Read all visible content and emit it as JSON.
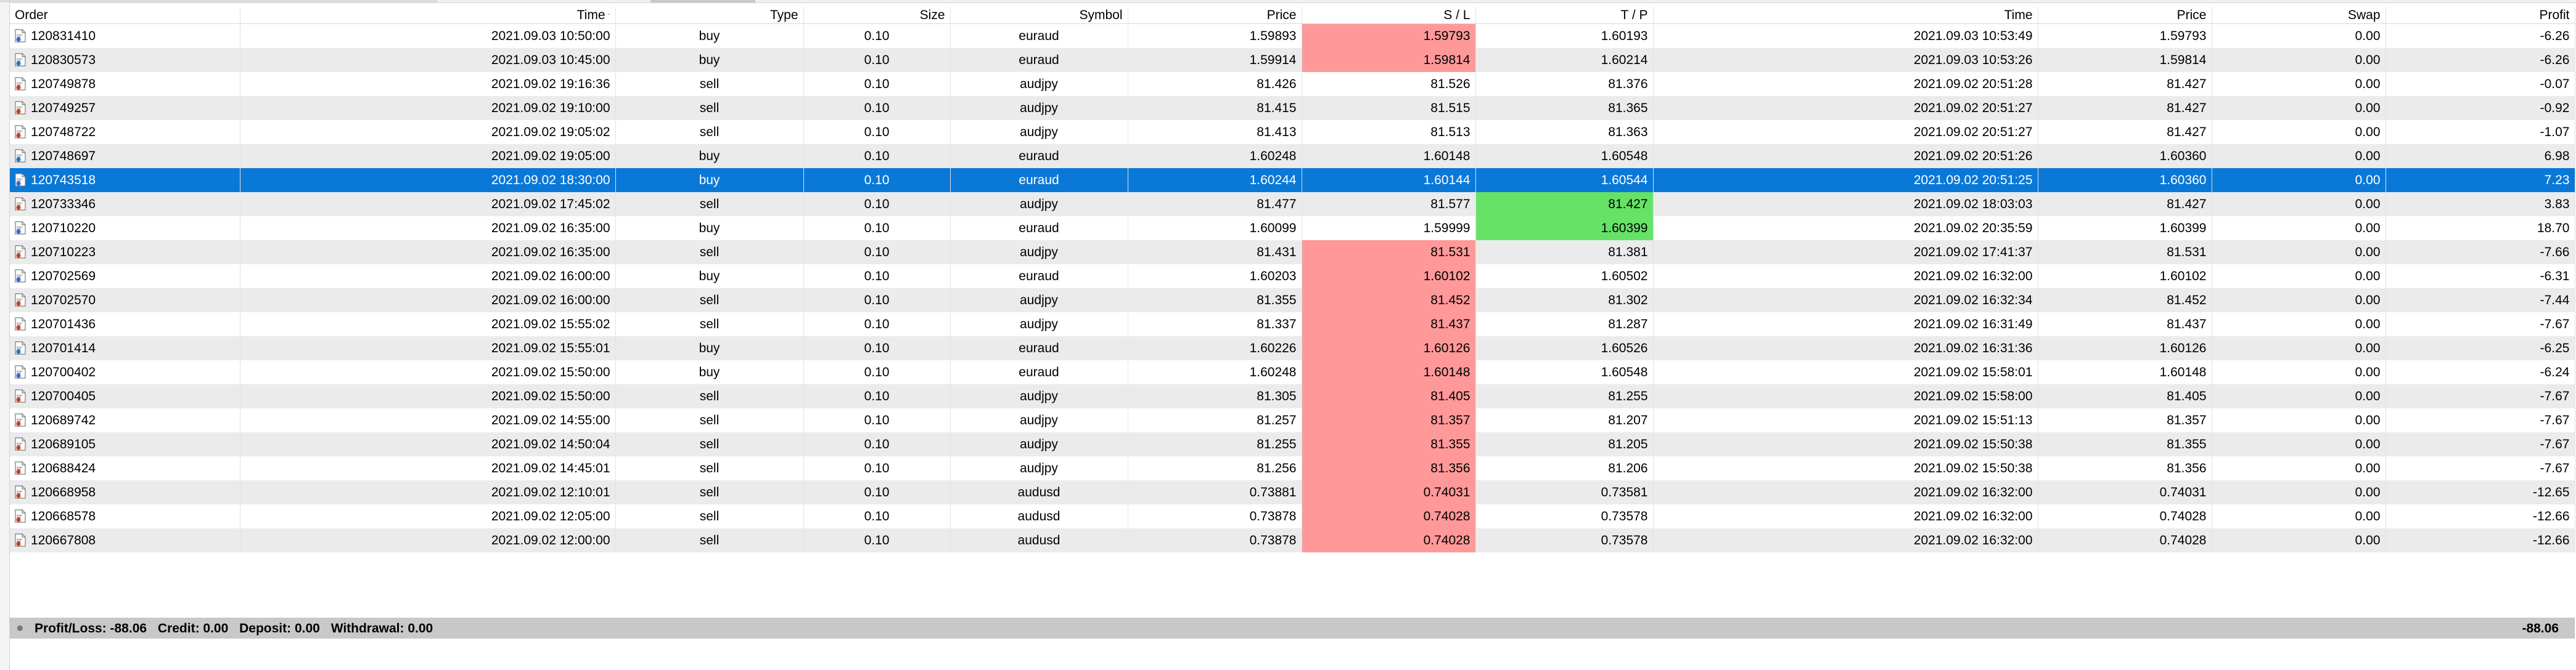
{
  "columns": [
    "Order",
    "Time",
    "Type",
    "Size",
    "Symbol",
    "Price",
    "S / L",
    "T / P",
    "Time",
    "Price",
    "Swap",
    "Profit"
  ],
  "sorted_column_index": 1,
  "rows": [
    {
      "order": "120831410",
      "open_time": "2021.09.03 10:50:00",
      "type": "buy",
      "size": "0.10",
      "symbol": "euraud",
      "price": "1.59893",
      "sl": "1.59793",
      "tp": "1.60193",
      "close_time": "2021.09.03 10:53:49",
      "close_price": "1.59793",
      "swap": "0.00",
      "profit": "-6.26",
      "sl_hit": true,
      "tp_hit": false
    },
    {
      "order": "120830573",
      "open_time": "2021.09.03 10:45:00",
      "type": "buy",
      "size": "0.10",
      "symbol": "euraud",
      "price": "1.59914",
      "sl": "1.59814",
      "tp": "1.60214",
      "close_time": "2021.09.03 10:53:26",
      "close_price": "1.59814",
      "swap": "0.00",
      "profit": "-6.26",
      "sl_hit": true,
      "tp_hit": false
    },
    {
      "order": "120749878",
      "open_time": "2021.09.02 19:16:36",
      "type": "sell",
      "size": "0.10",
      "symbol": "audjpy",
      "price": "81.426",
      "sl": "81.526",
      "tp": "81.376",
      "close_time": "2021.09.02 20:51:28",
      "close_price": "81.427",
      "swap": "0.00",
      "profit": "-0.07",
      "sl_hit": false,
      "tp_hit": false
    },
    {
      "order": "120749257",
      "open_time": "2021.09.02 19:10:00",
      "type": "sell",
      "size": "0.10",
      "symbol": "audjpy",
      "price": "81.415",
      "sl": "81.515",
      "tp": "81.365",
      "close_time": "2021.09.02 20:51:27",
      "close_price": "81.427",
      "swap": "0.00",
      "profit": "-0.92",
      "sl_hit": false,
      "tp_hit": false
    },
    {
      "order": "120748722",
      "open_time": "2021.09.02 19:05:02",
      "type": "sell",
      "size": "0.10",
      "symbol": "audjpy",
      "price": "81.413",
      "sl": "81.513",
      "tp": "81.363",
      "close_time": "2021.09.02 20:51:27",
      "close_price": "81.427",
      "swap": "0.00",
      "profit": "-1.07",
      "sl_hit": false,
      "tp_hit": false
    },
    {
      "order": "120748697",
      "open_time": "2021.09.02 19:05:00",
      "type": "buy",
      "size": "0.10",
      "symbol": "euraud",
      "price": "1.60248",
      "sl": "1.60148",
      "tp": "1.60548",
      "close_time": "2021.09.02 20:51:26",
      "close_price": "1.60360",
      "swap": "0.00",
      "profit": "6.98",
      "sl_hit": false,
      "tp_hit": false
    },
    {
      "order": "120743518",
      "open_time": "2021.09.02 18:30:00",
      "type": "buy",
      "size": "0.10",
      "symbol": "euraud",
      "price": "1.60244",
      "sl": "1.60144",
      "tp": "1.60544",
      "close_time": "2021.09.02 20:51:25",
      "close_price": "1.60360",
      "swap": "0.00",
      "profit": "7.23",
      "sl_hit": false,
      "tp_hit": false,
      "selected": true
    },
    {
      "order": "120733346",
      "open_time": "2021.09.02 17:45:02",
      "type": "sell",
      "size": "0.10",
      "symbol": "audjpy",
      "price": "81.477",
      "sl": "81.577",
      "tp": "81.427",
      "close_time": "2021.09.02 18:03:03",
      "close_price": "81.427",
      "swap": "0.00",
      "profit": "3.83",
      "sl_hit": false,
      "tp_hit": true
    },
    {
      "order": "120710220",
      "open_time": "2021.09.02 16:35:00",
      "type": "buy",
      "size": "0.10",
      "symbol": "euraud",
      "price": "1.60099",
      "sl": "1.59999",
      "tp": "1.60399",
      "close_time": "2021.09.02 20:35:59",
      "close_price": "1.60399",
      "swap": "0.00",
      "profit": "18.70",
      "sl_hit": false,
      "tp_hit": true
    },
    {
      "order": "120710223",
      "open_time": "2021.09.02 16:35:00",
      "type": "sell",
      "size": "0.10",
      "symbol": "audjpy",
      "price": "81.431",
      "sl": "81.531",
      "tp": "81.381",
      "close_time": "2021.09.02 17:41:37",
      "close_price": "81.531",
      "swap": "0.00",
      "profit": "-7.66",
      "sl_hit": true,
      "tp_hit": false
    },
    {
      "order": "120702569",
      "open_time": "2021.09.02 16:00:00",
      "type": "buy",
      "size": "0.10",
      "symbol": "euraud",
      "price": "1.60203",
      "sl": "1.60102",
      "tp": "1.60502",
      "close_time": "2021.09.02 16:32:00",
      "close_price": "1.60102",
      "swap": "0.00",
      "profit": "-6.31",
      "sl_hit": true,
      "tp_hit": false
    },
    {
      "order": "120702570",
      "open_time": "2021.09.02 16:00:00",
      "type": "sell",
      "size": "0.10",
      "symbol": "audjpy",
      "price": "81.355",
      "sl": "81.452",
      "tp": "81.302",
      "close_time": "2021.09.02 16:32:34",
      "close_price": "81.452",
      "swap": "0.00",
      "profit": "-7.44",
      "sl_hit": true,
      "tp_hit": false
    },
    {
      "order": "120701436",
      "open_time": "2021.09.02 15:55:02",
      "type": "sell",
      "size": "0.10",
      "symbol": "audjpy",
      "price": "81.337",
      "sl": "81.437",
      "tp": "81.287",
      "close_time": "2021.09.02 16:31:49",
      "close_price": "81.437",
      "swap": "0.00",
      "profit": "-7.67",
      "sl_hit": true,
      "tp_hit": false
    },
    {
      "order": "120701414",
      "open_time": "2021.09.02 15:55:01",
      "type": "buy",
      "size": "0.10",
      "symbol": "euraud",
      "price": "1.60226",
      "sl": "1.60126",
      "tp": "1.60526",
      "close_time": "2021.09.02 16:31:36",
      "close_price": "1.60126",
      "swap": "0.00",
      "profit": "-6.25",
      "sl_hit": true,
      "tp_hit": false
    },
    {
      "order": "120700402",
      "open_time": "2021.09.02 15:50:00",
      "type": "buy",
      "size": "0.10",
      "symbol": "euraud",
      "price": "1.60248",
      "sl": "1.60148",
      "tp": "1.60548",
      "close_time": "2021.09.02 15:58:01",
      "close_price": "1.60148",
      "swap": "0.00",
      "profit": "-6.24",
      "sl_hit": true,
      "tp_hit": false
    },
    {
      "order": "120700405",
      "open_time": "2021.09.02 15:50:00",
      "type": "sell",
      "size": "0.10",
      "symbol": "audjpy",
      "price": "81.305",
      "sl": "81.405",
      "tp": "81.255",
      "close_time": "2021.09.02 15:58:00",
      "close_price": "81.405",
      "swap": "0.00",
      "profit": "-7.67",
      "sl_hit": true,
      "tp_hit": false
    },
    {
      "order": "120689742",
      "open_time": "2021.09.02 14:55:00",
      "type": "sell",
      "size": "0.10",
      "symbol": "audjpy",
      "price": "81.257",
      "sl": "81.357",
      "tp": "81.207",
      "close_time": "2021.09.02 15:51:13",
      "close_price": "81.357",
      "swap": "0.00",
      "profit": "-7.67",
      "sl_hit": true,
      "tp_hit": false
    },
    {
      "order": "120689105",
      "open_time": "2021.09.02 14:50:04",
      "type": "sell",
      "size": "0.10",
      "symbol": "audjpy",
      "price": "81.255",
      "sl": "81.355",
      "tp": "81.205",
      "close_time": "2021.09.02 15:50:38",
      "close_price": "81.355",
      "swap": "0.00",
      "profit": "-7.67",
      "sl_hit": true,
      "tp_hit": false
    },
    {
      "order": "120688424",
      "open_time": "2021.09.02 14:45:01",
      "type": "sell",
      "size": "0.10",
      "symbol": "audjpy",
      "price": "81.256",
      "sl": "81.356",
      "tp": "81.206",
      "close_time": "2021.09.02 15:50:38",
      "close_price": "81.356",
      "swap": "0.00",
      "profit": "-7.67",
      "sl_hit": true,
      "tp_hit": false
    },
    {
      "order": "120668958",
      "open_time": "2021.09.02 12:10:01",
      "type": "sell",
      "size": "0.10",
      "symbol": "audusd",
      "price": "0.73881",
      "sl": "0.74031",
      "tp": "0.73581",
      "close_time": "2021.09.02 16:32:00",
      "close_price": "0.74031",
      "swap": "0.00",
      "profit": "-12.65",
      "sl_hit": true,
      "tp_hit": false
    },
    {
      "order": "120668578",
      "open_time": "2021.09.02 12:05:00",
      "type": "sell",
      "size": "0.10",
      "symbol": "audusd",
      "price": "0.73878",
      "sl": "0.74028",
      "tp": "0.73578",
      "close_time": "2021.09.02 16:32:00",
      "close_price": "0.74028",
      "swap": "0.00",
      "profit": "-12.66",
      "sl_hit": true,
      "tp_hit": false
    },
    {
      "order": "120667808",
      "open_time": "2021.09.02 12:00:00",
      "type": "sell",
      "size": "0.10",
      "symbol": "audusd",
      "price": "0.73878",
      "sl": "0.74028",
      "tp": "0.73578",
      "close_time": "2021.09.02 16:32:00",
      "close_price": "0.74028",
      "swap": "0.00",
      "profit": "-12.66",
      "sl_hit": true,
      "tp_hit": false
    }
  ],
  "summary": {
    "profit_loss": "Profit/Loss: -88.06",
    "credit": "Credit: 0.00",
    "deposit": "Deposit: 0.00",
    "withdrawal": "Withdrawal: 0.00",
    "total": "-88.06"
  },
  "colors": {
    "selection": "#0a78d7",
    "sl_hit": "#ff9999",
    "tp_hit": "#66e266",
    "stripe": "#ebebeb",
    "summary_bar": "#c8c8c8",
    "buy_icon_accent": "#2f6fd0",
    "sell_icon_accent": "#d23a2a"
  },
  "icons": {
    "buy": "buy-order-icon",
    "sell": "sell-order-icon",
    "summary": "summary-dot-icon"
  }
}
